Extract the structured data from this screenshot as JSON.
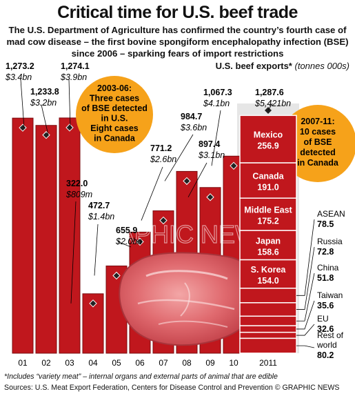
{
  "title": "Critical time for U.S. beef trade",
  "subtitle": "The U.S. Department of Agriculture has confirmed the country’s fourth case of mad cow disease – the first bovine spongiform encephalopathy infection (BSE) since 2006 – sparking fears of import restrictions",
  "chart_label": "U.S. beef exports*",
  "chart_unit": "(tonnes 000s)",
  "callouts": [
    "2003-06: Three cases of BSE detected in U.S. Eight cases in Canada",
    "2007-11: 10 cases of BSE detected in Canada"
  ],
  "footnote": "*Includes “variety meat” – internal organs and external parts of animal that are edible",
  "sources": "Sources: U.S. Meat Export Federation, Centers for Disease Control and Prevention © GRAPHIC NEWS",
  "watermark": "GRAPHIC NEWS",
  "colors": {
    "bar": "#c0171d",
    "bar_edge": "#7a0c10",
    "background": "#ffffff",
    "callout": "#f6a21a"
  },
  "chart_data": {
    "type": "bar",
    "ylim": [
      0,
      1300
    ],
    "categories": [
      "01",
      "02",
      "03",
      "04",
      "05",
      "06",
      "07",
      "08",
      "09",
      "10",
      "2011"
    ],
    "values": [
      1273.2,
      1233.8,
      1274.1,
      322.0,
      472.7,
      655.9,
      771.2,
      984.7,
      897.4,
      1067.3,
      1287.6
    ],
    "value_labels": [
      "1,273.2",
      "1,233.8",
      "1,274.1",
      "322.0",
      "472.7",
      "655.9",
      "771.2",
      "984.7",
      "897.4",
      "1,067.3",
      "1,287.6"
    ],
    "usd_labels": [
      "$3.4bn",
      "$3.2bn",
      "$3.9bn",
      "$809m",
      "$1.4bn",
      "$2.0bn",
      "$2.6bn",
      "$3.6bn",
      "$3.1bn",
      "$4.1bn",
      "$5,421bn"
    ],
    "breakdown_2011": [
      {
        "name": "Mexico",
        "value": 256.9,
        "display": "256.9"
      },
      {
        "name": "Canada",
        "value": 191.0,
        "display": "191.0"
      },
      {
        "name": "Middle East",
        "value": 175.2,
        "display": "175.2"
      },
      {
        "name": "Japan",
        "value": 158.6,
        "display": "158.6"
      },
      {
        "name": "S. Korea",
        "value": 154.0,
        "display": "154.0"
      },
      {
        "name": "ASEAN",
        "value": 78.5,
        "display": "78.5"
      },
      {
        "name": "Russia",
        "value": 72.8,
        "display": "72.8"
      },
      {
        "name": "China",
        "value": 51.8,
        "display": "51.8"
      },
      {
        "name": "Taiwan",
        "value": 35.6,
        "display": "35.6"
      },
      {
        "name": "EU",
        "value": 32.6,
        "display": "32.6"
      },
      {
        "name": "Rest of world",
        "value": 80.2,
        "display": "80.2"
      }
    ]
  }
}
